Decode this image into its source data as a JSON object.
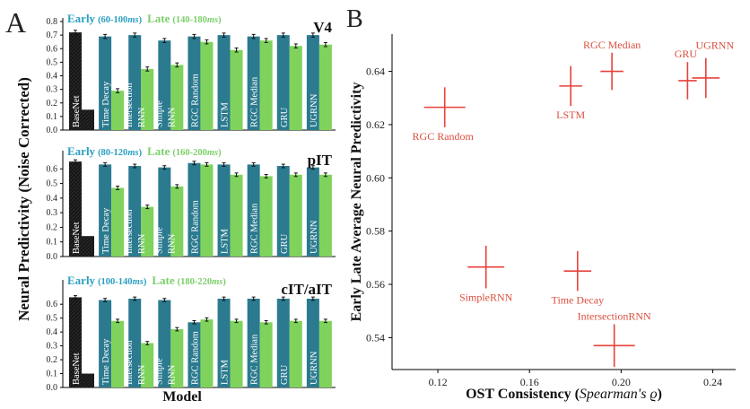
{
  "figure": {
    "panel_a_letter": "A",
    "panel_b_letter": "B",
    "a_ylabel": "Neural Predictivity (Noise Corrected)",
    "a_xlabel": "Model"
  },
  "colors": {
    "early": "#2b7a8f",
    "late": "#7fd35c",
    "basenet": "#1a1a1a",
    "early_label": "#2a9fbf",
    "late_label": "#7ccf6a",
    "scatter": "#e8413a",
    "scatter_label": "#d9503f"
  },
  "chart_data": [
    {
      "type": "bar",
      "region": "V4",
      "legend_early": "Early",
      "legend_early_range": "(60-100",
      "legend_late": "Late",
      "legend_late_range": "(140-180",
      "ms": "ms",
      "close_paren": ")",
      "ylim": [
        0,
        0.8
      ],
      "yticks": [
        "0.0",
        "0.1",
        "0.2",
        "0.3",
        "0.4",
        "0.5",
        "0.6",
        "0.7",
        "0.8"
      ],
      "categories": [
        {
          "lines": [
            "BaseNet"
          ]
        },
        {
          "lines": [
            "Time Decay"
          ]
        },
        {
          "lines": [
            "Intersection",
            "RNN"
          ]
        },
        {
          "lines": [
            "Simple",
            "RNN"
          ]
        },
        {
          "lines": [
            "RGC Random"
          ]
        },
        {
          "lines": [
            "LSTM"
          ]
        },
        {
          "lines": [
            "RGC Median"
          ]
        },
        {
          "lines": [
            "GRU"
          ]
        },
        {
          "lines": [
            "UGRNN"
          ]
        }
      ],
      "series": [
        {
          "values": [
            0.72,
            0.69,
            0.7,
            0.66,
            0.69,
            0.7,
            0.69,
            0.7,
            0.7
          ],
          "err": [
            0.015,
            0.015,
            0.015,
            0.015,
            0.015,
            0.015,
            0.015,
            0.015,
            0.015
          ]
        },
        {
          "values": [
            0.15,
            0.29,
            0.45,
            0.48,
            0.65,
            0.59,
            0.66,
            0.62,
            0.63
          ],
          "err": [
            0.0,
            0.015,
            0.015,
            0.015,
            0.015,
            0.015,
            0.015,
            0.015,
            0.015
          ]
        }
      ]
    },
    {
      "type": "bar",
      "region": "pIT",
      "legend_early": "Early",
      "legend_early_range": "(80-120",
      "legend_late": "Late",
      "legend_late_range": "(160-200",
      "ms": "ms",
      "close_paren": ")",
      "ylim": [
        0,
        0.7
      ],
      "yticks": [
        "0.0",
        "0.1",
        "0.2",
        "0.3",
        "0.4",
        "0.5",
        "0.6"
      ],
      "categories": [
        {
          "lines": [
            "BaseNet"
          ]
        },
        {
          "lines": [
            "Time Decay"
          ]
        },
        {
          "lines": [
            "Intersection",
            "RNN"
          ]
        },
        {
          "lines": [
            "Simple",
            "RNN"
          ]
        },
        {
          "lines": [
            "RGC Random"
          ]
        },
        {
          "lines": [
            "LSTM"
          ]
        },
        {
          "lines": [
            "RGC Median"
          ]
        },
        {
          "lines": [
            "GRU"
          ]
        },
        {
          "lines": [
            "UGRNN"
          ]
        }
      ],
      "series": [
        {
          "values": [
            0.65,
            0.63,
            0.62,
            0.61,
            0.64,
            0.63,
            0.63,
            0.62,
            0.61
          ],
          "err": [
            0.012,
            0.012,
            0.012,
            0.012,
            0.012,
            0.012,
            0.012,
            0.012,
            0.012
          ]
        },
        {
          "values": [
            0.14,
            0.47,
            0.34,
            0.48,
            0.63,
            0.56,
            0.55,
            0.56,
            0.56
          ],
          "err": [
            0.0,
            0.012,
            0.012,
            0.012,
            0.012,
            0.012,
            0.012,
            0.012,
            0.012
          ]
        }
      ]
    },
    {
      "type": "bar",
      "region": "cIT/aIT",
      "legend_early": "Early",
      "legend_early_range": "(100-140",
      "legend_late": "Late",
      "legend_late_range": "(180-220",
      "ms": "ms",
      "close_paren": ")",
      "ylim": [
        0,
        0.75
      ],
      "yticks": [
        "0.0",
        "0.1",
        "0.2",
        "0.3",
        "0.4",
        "0.5",
        "0.6"
      ],
      "categories": [
        {
          "lines": [
            "BaseNet"
          ]
        },
        {
          "lines": [
            "Time Decay"
          ]
        },
        {
          "lines": [
            "Intersection",
            "RNN"
          ]
        },
        {
          "lines": [
            "Simple",
            "RNN"
          ]
        },
        {
          "lines": [
            "RGC Random"
          ]
        },
        {
          "lines": [
            "LSTM"
          ]
        },
        {
          "lines": [
            "RGC Median"
          ]
        },
        {
          "lines": [
            "GRU"
          ]
        },
        {
          "lines": [
            "UGRNN"
          ]
        }
      ],
      "series": [
        {
          "values": [
            0.65,
            0.63,
            0.64,
            0.63,
            0.47,
            0.64,
            0.64,
            0.64,
            0.64
          ],
          "err": [
            0.012,
            0.012,
            0.012,
            0.012,
            0.012,
            0.012,
            0.012,
            0.012,
            0.012
          ]
        },
        {
          "values": [
            0.1,
            0.48,
            0.32,
            0.42,
            0.49,
            0.48,
            0.47,
            0.48,
            0.48
          ],
          "err": [
            0.0,
            0.012,
            0.012,
            0.012,
            0.012,
            0.012,
            0.012,
            0.012,
            0.012
          ]
        }
      ]
    },
    {
      "type": "scatter",
      "xlabel_main": "OST Consistency (",
      "xlabel_italic": "Spearman's ϱ",
      "xlabel_close": ")",
      "ylabel": "Early Late Average Neural Predictivity",
      "xlim": [
        0.1,
        0.25
      ],
      "ylim": [
        0.528,
        0.654
      ],
      "xticks": [
        {
          "v": 0.12,
          "label": "0.12"
        },
        {
          "v": 0.16,
          "label": "0.16"
        },
        {
          "v": 0.2,
          "label": "0.20"
        },
        {
          "v": 0.24,
          "label": "0.24"
        }
      ],
      "yticks": [
        {
          "v": 0.54,
          "label": "0.54"
        },
        {
          "v": 0.56,
          "label": "0.56"
        },
        {
          "v": 0.58,
          "label": "0.58"
        },
        {
          "v": 0.6,
          "label": "0.60"
        },
        {
          "v": 0.62,
          "label": "0.62"
        },
        {
          "v": 0.64,
          "label": "0.64"
        }
      ],
      "points": [
        {
          "name": "RGC Random",
          "x": 0.123,
          "y": 0.6265,
          "xerr": 0.009,
          "yerr": 0.0075,
          "pos": "below-left"
        },
        {
          "name": "LSTM",
          "x": 0.178,
          "y": 0.6345,
          "xerr": 0.005,
          "yerr": 0.0075,
          "pos": "below"
        },
        {
          "name": "RGC Median",
          "x": 0.196,
          "y": 0.64,
          "xerr": 0.005,
          "yerr": 0.007,
          "pos": "above"
        },
        {
          "name": "GRU",
          "x": 0.229,
          "y": 0.6365,
          "xerr": 0.004,
          "yerr": 0.007,
          "pos": "above-left"
        },
        {
          "name": "UGRNN",
          "x": 0.237,
          "y": 0.6375,
          "xerr": 0.006,
          "yerr": 0.0075,
          "pos": "above-right"
        },
        {
          "name": "SimpleRNN",
          "x": 0.141,
          "y": 0.5665,
          "xerr": 0.008,
          "yerr": 0.008,
          "pos": "below"
        },
        {
          "name": "Time Decay",
          "x": 0.181,
          "y": 0.565,
          "xerr": 0.006,
          "yerr": 0.0075,
          "pos": "below"
        },
        {
          "name": "IntersectionRNN",
          "x": 0.197,
          "y": 0.537,
          "xerr": 0.009,
          "yerr": 0.008,
          "pos": "above"
        }
      ]
    }
  ]
}
